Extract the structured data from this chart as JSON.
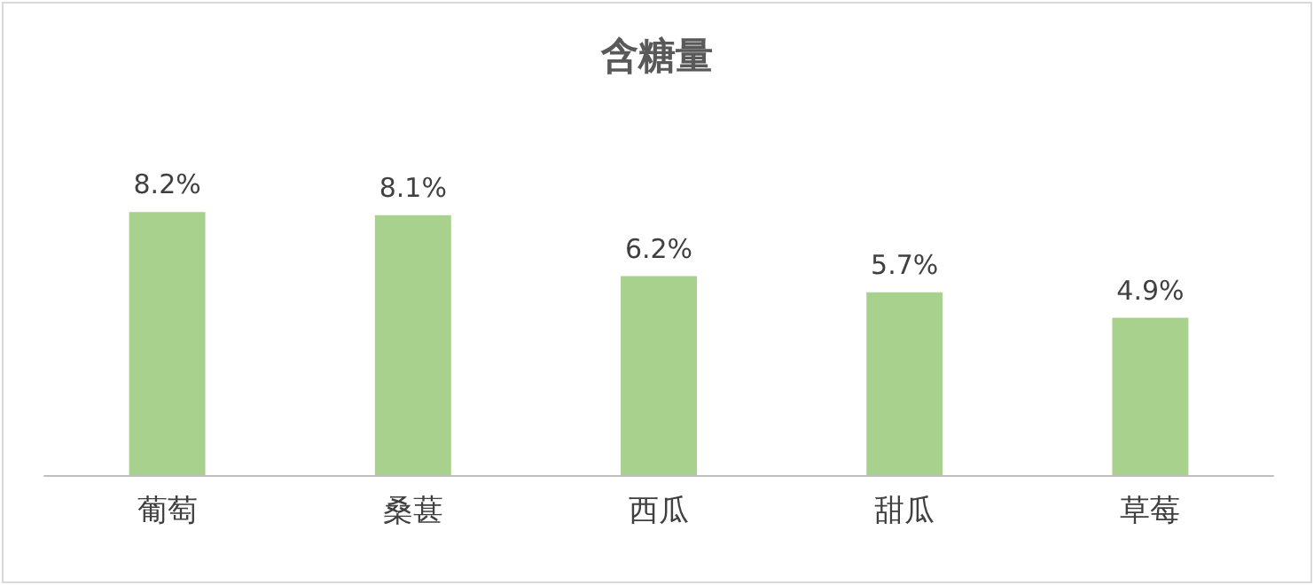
{
  "chart_data": {
    "type": "bar",
    "title": "含糖量",
    "categories": [
      "葡萄",
      "桑葚",
      "西瓜",
      "甜瓜",
      "草莓"
    ],
    "values": [
      8.2,
      8.1,
      6.2,
      5.7,
      4.9
    ],
    "value_labels": [
      "8.2%",
      "8.1%",
      "6.2%",
      "5.7%",
      "4.9%"
    ],
    "color": "#a9d18e"
  }
}
